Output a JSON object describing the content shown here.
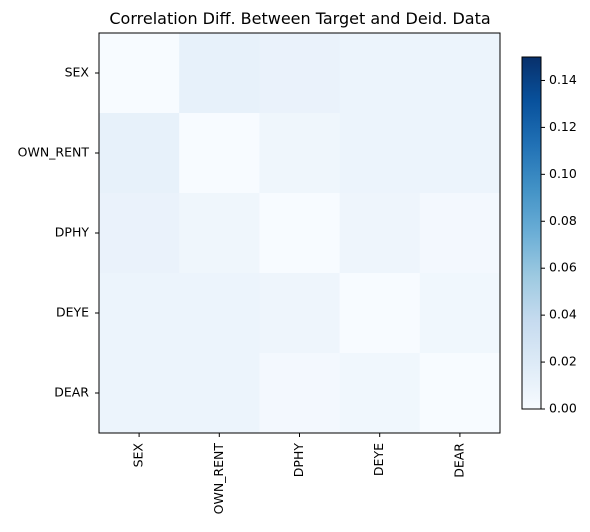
{
  "chart_data": {
    "type": "heatmap",
    "title": "Correlation Diff. Between Target and Deid. Data",
    "x_labels": [
      "SEX",
      "OWN_RENT",
      "DPHY",
      "DEYE",
      "DEAR"
    ],
    "y_labels": [
      "SEX",
      "OWN_RENT",
      "DPHY",
      "DEYE",
      "DEAR"
    ],
    "values": [
      [
        0.0,
        0.012,
        0.01,
        0.008,
        0.008
      ],
      [
        0.012,
        0.0,
        0.006,
        0.008,
        0.008
      ],
      [
        0.01,
        0.006,
        0.0,
        0.007,
        0.003
      ],
      [
        0.008,
        0.008,
        0.007,
        0.0,
        0.005
      ],
      [
        0.008,
        0.008,
        0.003,
        0.005,
        0.0
      ]
    ],
    "colormap": "Blues",
    "vmin": 0,
    "vmax": 0.15,
    "colorbar_ticks": [
      "0.00",
      "0.02",
      "0.04",
      "0.06",
      "0.08",
      "0.10",
      "0.12",
      "0.14"
    ],
    "colorbar_tick_values": [
      0,
      0.02,
      0.04,
      0.06,
      0.08,
      0.1,
      0.12,
      0.14
    ],
    "grid": false
  }
}
